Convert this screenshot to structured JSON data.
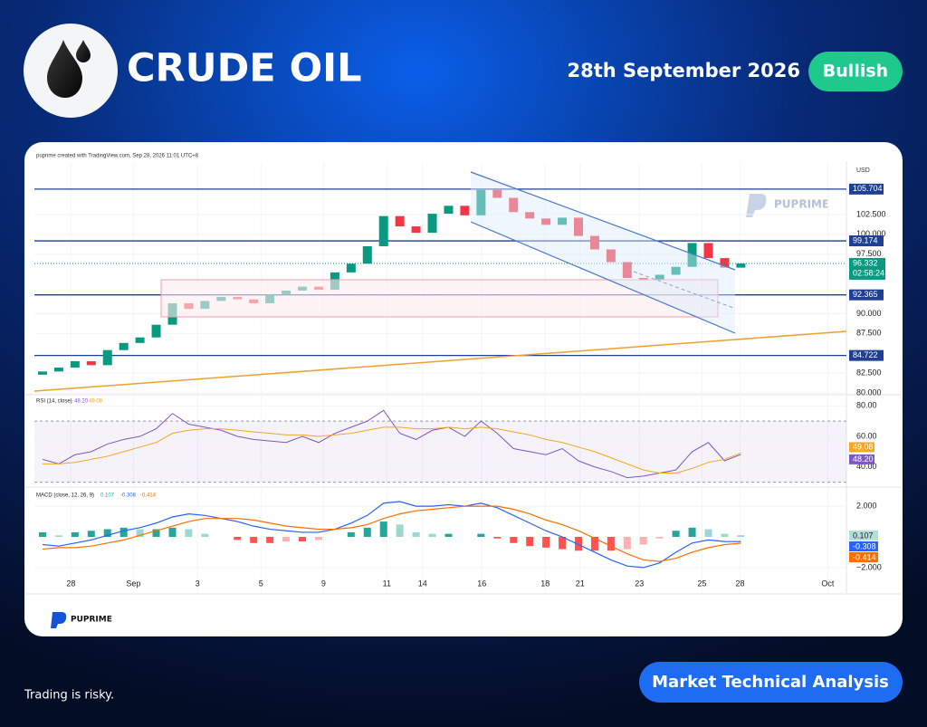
{
  "header": {
    "title": "CRUDE OIL",
    "date": "28th September 2026",
    "badge": "Bullish"
  },
  "chart_panel": {
    "attribution": "puprime created with TradingView.com, Sep 28, 2026 11:01 UTC+8",
    "currency": "USD",
    "watermark": "PUPRIME",
    "logo": "PUPRIME"
  },
  "chart_data": [
    {
      "type": "candlestick",
      "x": [
        1,
        3,
        5,
        7,
        9,
        11,
        13,
        15,
        17,
        19,
        21,
        23,
        25,
        27,
        29,
        31,
        33,
        35,
        37,
        39,
        41,
        43,
        45,
        47,
        49,
        51,
        53,
        55,
        57,
        59,
        61,
        63,
        65,
        67,
        69,
        71,
        73,
        75,
        77,
        79,
        81,
        83,
        85,
        87
      ],
      "open": [
        82.3,
        82.7,
        83.2,
        84.0,
        83.5,
        85.4,
        86.3,
        87.0,
        88.6,
        91.3,
        90.6,
        91.6,
        92.1,
        91.8,
        91.3,
        92.4,
        92.9,
        93.4,
        93.0,
        95.2,
        96.3,
        98.5,
        102.3,
        101.0,
        100.2,
        102.6,
        103.6,
        102.4,
        105.6,
        104.6,
        102.8,
        102.0,
        101.2,
        102.1,
        99.8,
        98.1,
        96.5,
        94.5,
        94.2,
        94.9,
        95.9,
        98.9,
        97.0,
        95.8
      ],
      "close": [
        82.7,
        83.2,
        84.0,
        83.5,
        85.4,
        86.3,
        87.0,
        88.6,
        91.3,
        90.6,
        91.6,
        92.1,
        91.8,
        91.3,
        92.4,
        92.9,
        93.4,
        93.0,
        95.2,
        96.3,
        98.5,
        102.3,
        101.0,
        100.2,
        102.6,
        103.6,
        102.4,
        105.6,
        104.6,
        102.8,
        102.0,
        101.2,
        102.1,
        99.8,
        98.1,
        96.5,
        94.5,
        94.2,
        94.9,
        95.9,
        98.9,
        97.0,
        95.8,
        96.332
      ],
      "colors": {
        "up": "#089981",
        "down": "#f23645"
      },
      "xlim": [
        0,
        100
      ],
      "xticks": [
        {
          "value": 4.5,
          "label": "28"
        },
        {
          "value": 12.2,
          "label": "Sep"
        },
        {
          "value": 20.1,
          "label": "3"
        },
        {
          "value": 27.9,
          "label": "5"
        },
        {
          "value": 35.6,
          "label": "9"
        },
        {
          "value": 43.4,
          "label": "11"
        },
        {
          "value": 47.8,
          "label": "14"
        },
        {
          "value": 55.1,
          "label": "16"
        },
        {
          "value": 62.9,
          "label": "18"
        },
        {
          "value": 67.2,
          "label": "21"
        },
        {
          "value": 74.5,
          "label": "23"
        },
        {
          "value": 82.2,
          "label": "25"
        },
        {
          "value": 86.9,
          "label": "28"
        },
        {
          "value": 97.7,
          "label": "Oct"
        }
      ],
      "ylim": [
        80,
        109
      ],
      "yticks": [
        {
          "value": 102.5,
          "label": "102.500"
        },
        {
          "value": 100,
          "label": "100.000"
        },
        {
          "value": 97.5,
          "label": "97.500"
        },
        {
          "value": 90,
          "label": "90.000"
        },
        {
          "value": 87.5,
          "label": "87.500"
        },
        {
          "value": 82.5,
          "label": "82.500"
        },
        {
          "value": 80,
          "label": "80.000"
        }
      ],
      "levels": [
        105.704,
        99.174,
        92.365,
        84.722
      ],
      "level_color": "#1f3f93",
      "countdown": "02:58:24"
    },
    {
      "type": "line",
      "title": "RSI (14, close)",
      "series": [
        {
          "color": "#7e57c2",
          "last_value_label": "48.20",
          "values": [
            45,
            42,
            48,
            50,
            55,
            58,
            60,
            65,
            75,
            68,
            66,
            64,
            60,
            58,
            57,
            56,
            60,
            56,
            62,
            66,
            70,
            77,
            62,
            58,
            64,
            66,
            60,
            70,
            62,
            52,
            50,
            48,
            52,
            44,
            40,
            37,
            33,
            34,
            36,
            38,
            50,
            56,
            44,
            48.2
          ]
        },
        {
          "color": "#f5a623",
          "last_value_label": "49.08",
          "values": [
            42,
            42,
            43,
            45,
            47,
            50,
            53,
            56,
            62,
            64,
            65,
            65,
            64,
            63,
            62,
            61,
            61,
            60,
            61,
            62,
            64,
            66,
            66,
            65,
            65,
            66,
            65,
            66,
            65,
            63,
            61,
            58,
            56,
            53,
            50,
            46,
            42,
            38,
            36,
            36,
            39,
            43,
            45,
            49.08
          ]
        }
      ],
      "ylim": [
        28,
        85.5
      ],
      "yticks": [
        {
          "value": 80,
          "label": "80.00"
        },
        {
          "value": 60,
          "label": "60.00"
        },
        {
          "value": 40,
          "label": "40.00"
        }
      ],
      "band": [
        30,
        70
      ]
    },
    {
      "type": "macd",
      "title": "MACD (close, 12, 26, 9)",
      "histogram": {
        "color_up": "#26a69a",
        "color_down": "#ff5252",
        "values": [
          0.3,
          0.1,
          0.3,
          0.4,
          0.5,
          0.6,
          0.5,
          0.5,
          0.6,
          0.5,
          0.2,
          0,
          -0.2,
          -0.4,
          -0.4,
          -0.3,
          -0.3,
          -0.2,
          0,
          0.3,
          0.6,
          1.0,
          0.8,
          0.3,
          0.2,
          0.2,
          0,
          0.2,
          -0.1,
          -0.4,
          -0.6,
          -0.7,
          -0.8,
          -0.9,
          -0.9,
          -0.9,
          -0.8,
          -0.5,
          -0.1,
          0.4,
          0.6,
          0.5,
          0.2,
          0.107
        ]
      },
      "series": [
        {
          "color": "#2962ff",
          "values": [
            -0.5,
            -0.6,
            -0.4,
            -0.2,
            0.1,
            0.4,
            0.6,
            0.9,
            1.3,
            1.5,
            1.4,
            1.2,
            1.0,
            0.7,
            0.5,
            0.4,
            0.3,
            0.3,
            0.5,
            0.9,
            1.4,
            2.2,
            2.3,
            2.0,
            2.0,
            2.1,
            2.0,
            2.2,
            1.9,
            1.4,
            0.9,
            0.4,
            0.0,
            -0.5,
            -1.0,
            -1.5,
            -1.9,
            -2.0,
            -1.7,
            -1.0,
            -0.4,
            -0.2,
            -0.3,
            -0.308
          ]
        },
        {
          "color": "#ff6d00",
          "values": [
            -0.8,
            -0.7,
            -0.7,
            -0.6,
            -0.4,
            -0.2,
            0.1,
            0.4,
            0.7,
            1.0,
            1.2,
            1.2,
            1.2,
            1.1,
            0.9,
            0.7,
            0.6,
            0.5,
            0.5,
            0.6,
            0.8,
            1.2,
            1.5,
            1.7,
            1.8,
            1.9,
            2.0,
            2.0,
            2.0,
            1.8,
            1.5,
            1.1,
            0.8,
            0.4,
            -0.1,
            -0.6,
            -1.1,
            -1.5,
            -1.6,
            -1.4,
            -1.0,
            -0.7,
            -0.5,
            -0.414
          ]
        }
      ],
      "ylim": [
        -3.6,
        3.07
      ],
      "yticks": [
        {
          "value": 2,
          "label": "2.000"
        },
        {
          "value": -2,
          "label": "−2.000"
        }
      ]
    }
  ],
  "footer": {
    "disclaimer": "Trading is risky.",
    "button": "Market Technical Analysis"
  }
}
